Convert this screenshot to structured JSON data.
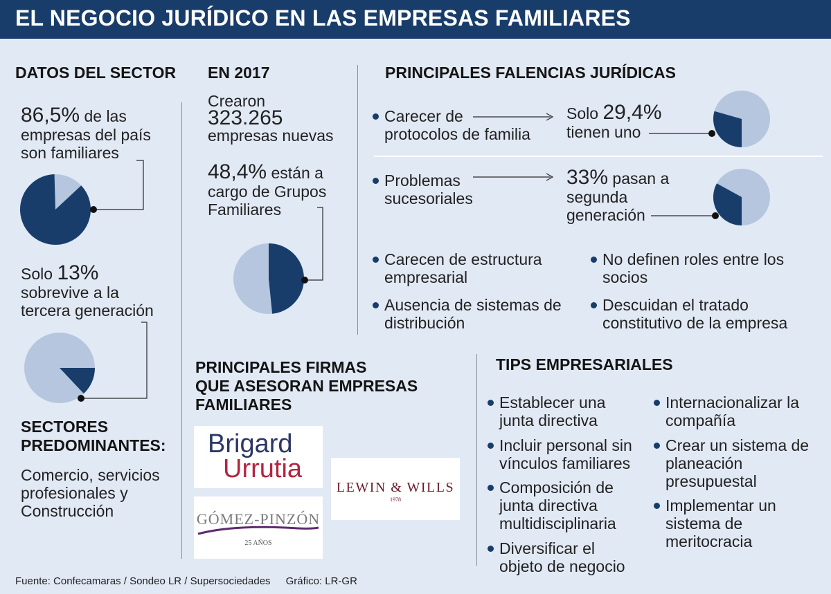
{
  "header": {
    "title": "EL NEGOCIO JURÍDICO EN LAS EMPRESAS FAMILIARES"
  },
  "colors": {
    "dark": "#183d6b",
    "light": "#b6c6de",
    "background": "#e1e9f4"
  },
  "datos_sector": {
    "heading": "DATOS DEL SECTOR",
    "stat1_value": "86,5%",
    "stat1_line1_rest": " de las",
    "stat1_line2": "empresas del país",
    "stat1_line3": "son familiares",
    "stat2_prefix": "Solo ",
    "stat2_value": "13%",
    "stat2_line2": "sobrevive a la",
    "stat2_line3": "tercera generación"
  },
  "sectores": {
    "heading_line1": "SECTORES",
    "heading_line2": "PREDOMINANTES:",
    "line1": "Comercio, servicios",
    "line2": "profesionales  y",
    "line3": "Construcción"
  },
  "en_2017": {
    "heading": "EN 2017",
    "crearon": "Crearon",
    "count": "323.265",
    "nuevas": "empresas nuevas",
    "pct": "48,4%",
    "pct_rest": " están a",
    "line2": "cargo de Grupos",
    "line3": "Familiares"
  },
  "falencias": {
    "heading": "PRINCIPALES FALENCIAS JURÍDICAS",
    "item1_line1": "Carecer de",
    "item1_line2": "protocolos de familia",
    "item1_stat_prefix": "Solo ",
    "item1_stat_value": "29,4%",
    "item1_stat_line2": "tienen uno",
    "item2_line1": "Problemas",
    "item2_line2": "sucesoriales",
    "item2_stat_value": "33%",
    "item2_stat_rest": " pasan a",
    "item2_stat_line2": "segunda",
    "item2_stat_line3": "generación",
    "list": [
      {
        "line1": "Carecen de estructura",
        "line2": "empresarial"
      },
      {
        "line1": "Ausencia de sistemas de",
        "line2": "distribución"
      },
      {
        "line1": "No definen roles entre los",
        "line2": "socios"
      },
      {
        "line1": "Descuidan el tratado",
        "line2": "constitutivo de la empresa"
      }
    ]
  },
  "firmas": {
    "heading_line1": "PRINCIPALES FIRMAS",
    "heading_line2": "QUE ASESORAN EMPRESAS",
    "heading_line3": "FAMILIARES",
    "logo1_line1": "Brigard",
    "logo1_line2": "Urrutia",
    "logo2": "GÓMEZ-PINZÓN",
    "logo2_sub": "25 AÑOS",
    "logo3": "LEWIN & WILLS",
    "logo3_sub": "1978"
  },
  "tips": {
    "heading": "TIPS EMPRESARIALES",
    "left": [
      {
        "line1": "Establecer una",
        "line2": "junta directiva"
      },
      {
        "line1": "Incluir personal sin",
        "line2": "vínculos familiares"
      },
      {
        "line1": "Composición de",
        "line2": "junta directiva",
        "line3": "multidisciplinaria"
      },
      {
        "line1": "Diversificar el",
        "line2": "objeto de negocio"
      }
    ],
    "right": [
      {
        "line1": "Internacionalizar la",
        "line2": "compañía"
      },
      {
        "line1": "Crear un sistema de",
        "line2": "planeación",
        "line3": "presupuestal"
      },
      {
        "line1": "Implementar un",
        "line2": "sistema de",
        "line3": "meritocracia"
      }
    ]
  },
  "footer": {
    "source": "Fuente: Confecamaras / Sondeo LR / Supersociedades",
    "graphic": "Gráfico: LR-GR"
  }
}
